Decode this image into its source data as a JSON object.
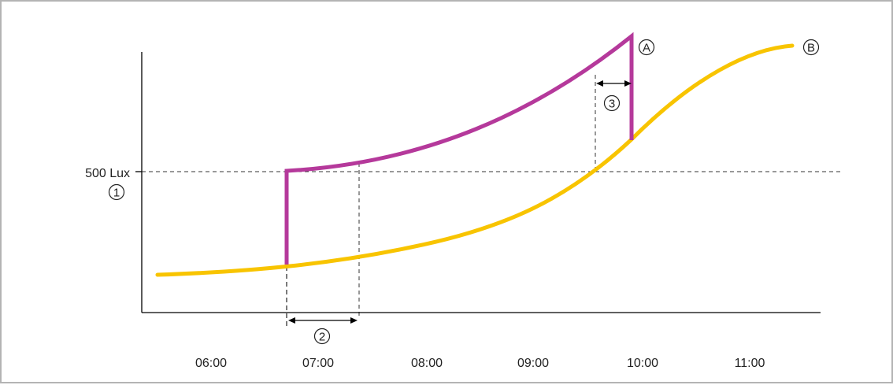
{
  "time_labels": [
    "06:00",
    "07:00",
    "08:00",
    "09:00",
    "10:00",
    "11:00"
  ],
  "threshold_label": "500 Lux",
  "markers": {
    "one": "1",
    "two": "2",
    "three": "3",
    "A": "A",
    "B": "B"
  },
  "colors": {
    "curve_a": "#b5399b",
    "curve_b": "#f8c400",
    "axis": "#000000",
    "dashed": "#333333",
    "frame": "#b4b4b4"
  }
}
